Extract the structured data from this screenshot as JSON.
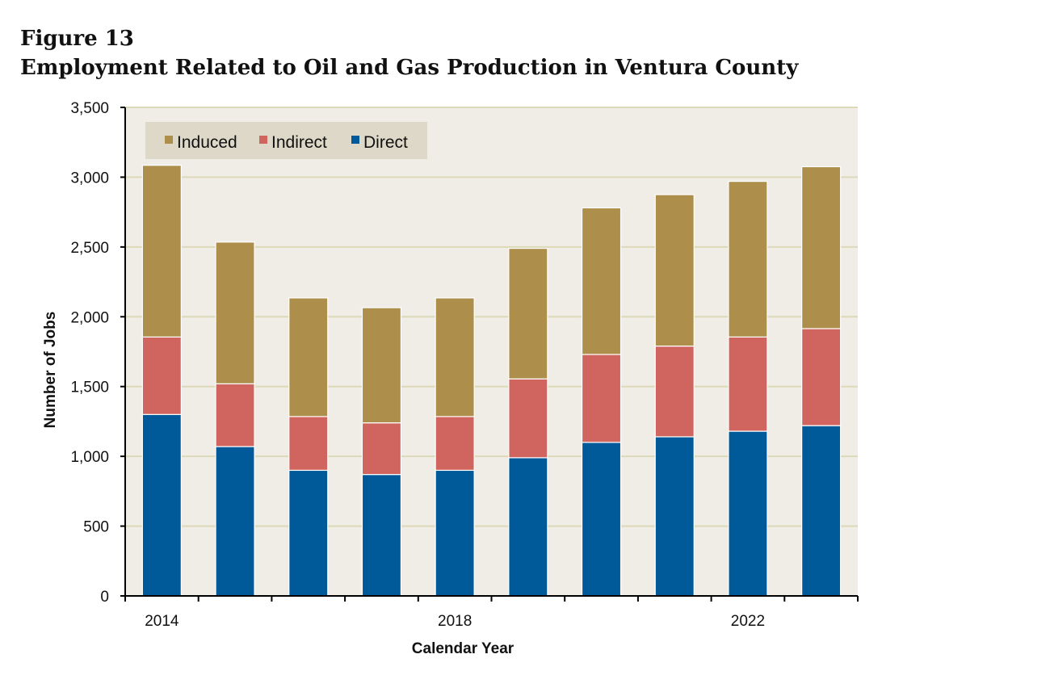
{
  "figure": {
    "number": "Figure 13",
    "title": "Employment Related to Oil and Gas Production in Ventura County"
  },
  "chart_data": {
    "type": "bar",
    "stacked": true,
    "categories": [
      "2014",
      "2015",
      "2016",
      "2017",
      "2018",
      "2019",
      "2020",
      "2021",
      "2022",
      "2023"
    ],
    "x_tick_labels": [
      "2014",
      "",
      "",
      "",
      "2018",
      "",
      "",
      "",
      "2022",
      ""
    ],
    "series": [
      {
        "name": "Direct",
        "color": "#005a9a",
        "values": [
          1300,
          1070,
          900,
          870,
          900,
          990,
          1100,
          1140,
          1180,
          1220
        ]
      },
      {
        "name": "Indirect",
        "color": "#cf655e",
        "values": [
          555,
          450,
          385,
          370,
          385,
          565,
          630,
          650,
          675,
          695
        ]
      },
      {
        "name": "Induced",
        "color": "#ae8e4b",
        "values": [
          1230,
          1015,
          850,
          825,
          850,
          935,
          1050,
          1085,
          1115,
          1160
        ]
      }
    ],
    "legend_order": [
      "Induced",
      "Indirect",
      "Direct"
    ],
    "legend_position": "top-left",
    "xlabel": "Calendar Year",
    "ylabel": "Number of Jobs",
    "ylim": [
      0,
      3500
    ],
    "yticks": [
      0,
      500,
      1000,
      1500,
      2000,
      2500,
      3000,
      3500
    ],
    "ytick_labels": [
      "0",
      "500",
      "1,000",
      "1,500",
      "2,000",
      "2,500",
      "3,000",
      "3,500"
    ],
    "grid": true,
    "colors": {
      "plot_background": "#f0ece6",
      "gridline": "#dcd9b9",
      "legend_background": "#ddd8c8"
    }
  }
}
